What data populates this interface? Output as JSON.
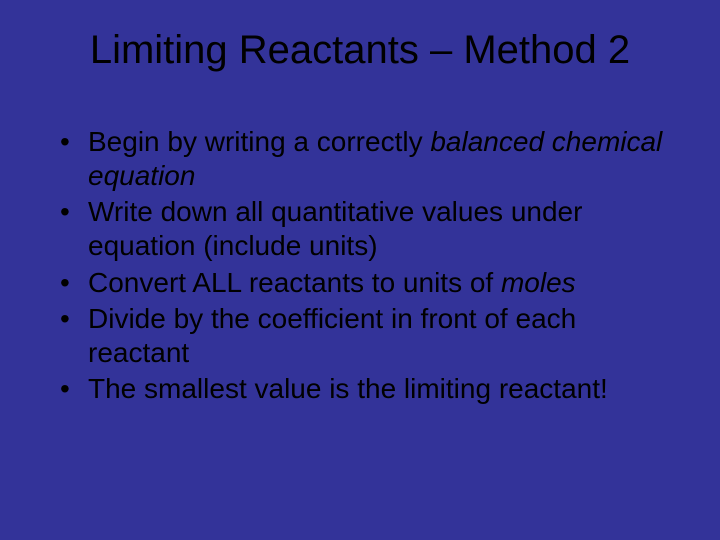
{
  "background_color": "#333399",
  "text_color": "#000000",
  "title": {
    "text": "Limiting Reactants – Method 2",
    "fontsize": 40,
    "weight": "normal",
    "align": "center"
  },
  "bullets": {
    "fontsize": 28,
    "items": [
      {
        "pre": "Begin by writing a correctly ",
        "italic": "balanced chemical equation",
        "post": ""
      },
      {
        "pre": "Write down all quantitative values under equation (include units)",
        "italic": "",
        "post": ""
      },
      {
        "pre": "Convert ALL reactants to units of ",
        "italic": "moles",
        "post": ""
      },
      {
        "pre": "Divide by the coefficient in front of each reactant",
        "italic": "",
        "post": ""
      },
      {
        "pre": "The smallest value is the limiting reactant!",
        "italic": "",
        "post": ""
      }
    ]
  }
}
